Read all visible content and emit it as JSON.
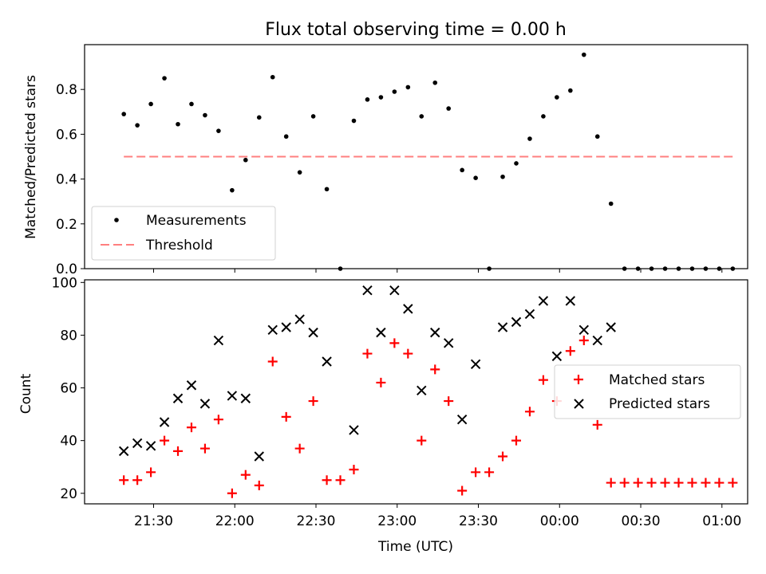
{
  "chart_data": [
    {
      "type": "scatter",
      "title": "Flux total observing time = 0.00 h",
      "ylabel": "Matched/Predicted stars",
      "ylim": [
        0,
        1.0
      ],
      "yticks": [
        0.0,
        0.2,
        0.4,
        0.6,
        0.8
      ],
      "ytick_labels": [
        "0.0",
        "0.2",
        "0.4",
        "0.6",
        "0.8"
      ],
      "legend": {
        "position": "lower-left",
        "entries": [
          "Measurements",
          "Threshold"
        ]
      },
      "series": [
        {
          "name": "Measurements",
          "marker": "dot",
          "color": "#000000",
          "x": [
            "21:19",
            "21:24",
            "21:29",
            "21:34",
            "21:39",
            "21:44",
            "21:49",
            "21:54",
            "21:59",
            "22:04",
            "22:09",
            "22:14",
            "22:19",
            "22:24",
            "22:29",
            "22:34",
            "22:39",
            "22:44",
            "22:49",
            "22:54",
            "22:59",
            "23:04",
            "23:09",
            "23:14",
            "23:19",
            "23:24",
            "23:29",
            "23:34",
            "23:39",
            "23:44",
            "23:49",
            "23:54",
            "23:59",
            "00:04",
            "00:09",
            "00:14",
            "00:19",
            "00:24",
            "00:29",
            "00:34",
            "00:39",
            "00:44",
            "00:49",
            "00:54",
            "00:59",
            "01:04"
          ],
          "y": [
            0.69,
            0.64,
            0.735,
            0.85,
            0.645,
            0.735,
            0.685,
            0.615,
            0.35,
            0.485,
            0.675,
            0.855,
            0.59,
            0.43,
            0.68,
            0.355,
            0.0,
            0.66,
            0.755,
            0.765,
            0.79,
            0.81,
            0.68,
            0.83,
            0.715,
            0.44,
            0.405,
            0.0,
            0.41,
            0.47,
            0.58,
            0.68,
            0.765,
            0.795,
            0.955,
            0.59,
            0.29,
            0.0,
            0.0,
            0.0,
            0.0,
            0.0,
            0.0,
            0.0,
            0.0,
            0.0
          ]
        },
        {
          "name": "Threshold",
          "style": "dashed",
          "color": "#ff7f7f",
          "x": [
            "21:19",
            "01:04"
          ],
          "y": [
            0.5,
            0.5
          ]
        }
      ]
    },
    {
      "type": "scatter",
      "xlabel": "Time (UTC)",
      "ylabel": "Count",
      "ylim": [
        16,
        101
      ],
      "yticks": [
        20,
        40,
        60,
        80,
        100
      ],
      "ytick_labels": [
        "20",
        "40",
        "60",
        "80",
        "100"
      ],
      "xticks": [
        "21:30",
        "22:00",
        "22:30",
        "23:00",
        "23:30",
        "00:00",
        "00:30",
        "01:00"
      ],
      "legend": {
        "position": "center-right",
        "entries": [
          "Matched stars",
          "Predicted stars"
        ]
      },
      "series": [
        {
          "name": "Matched stars",
          "marker": "plus",
          "color": "#ff0000",
          "x": [
            "21:19",
            "21:24",
            "21:29",
            "21:34",
            "21:39",
            "21:44",
            "21:49",
            "21:54",
            "21:59",
            "22:04",
            "22:09",
            "22:14",
            "22:19",
            "22:24",
            "22:29",
            "22:34",
            "22:39",
            "22:44",
            "22:49",
            "22:54",
            "22:59",
            "23:04",
            "23:09",
            "23:14",
            "23:19",
            "23:24",
            "23:29",
            "23:34",
            "23:39",
            "23:44",
            "23:49",
            "23:54",
            "23:59",
            "00:04",
            "00:09",
            "00:14",
            "00:19",
            "00:24",
            "00:29",
            "00:34",
            "00:39",
            "00:44",
            "00:49",
            "00:54",
            "00:59",
            "01:04"
          ],
          "y": [
            25,
            25,
            28,
            40,
            36,
            45,
            37,
            48,
            20,
            27,
            23,
            70,
            49,
            37,
            55,
            25,
            25,
            29,
            73,
            62,
            77,
            73,
            40,
            67,
            55,
            21,
            28,
            28,
            34,
            40,
            51,
            63,
            55,
            74,
            78,
            46,
            24,
            24,
            24,
            24,
            24,
            24,
            24,
            24,
            24,
            24
          ]
        },
        {
          "name": "Predicted stars",
          "marker": "x",
          "color": "#000000",
          "x": [
            "21:19",
            "21:24",
            "21:29",
            "21:34",
            "21:39",
            "21:44",
            "21:49",
            "21:54",
            "21:59",
            "22:04",
            "22:09",
            "22:14",
            "22:19",
            "22:24",
            "22:29",
            "22:34",
            "22:44",
            "22:49",
            "22:54",
            "22:59",
            "23:04",
            "23:09",
            "23:14",
            "23:19",
            "23:24",
            "23:29",
            "23:39",
            "23:44",
            "23:49",
            "23:54",
            "23:59",
            "00:04",
            "00:09",
            "00:14",
            "00:19"
          ],
          "y": [
            36,
            39,
            38,
            47,
            56,
            61,
            54,
            78,
            57,
            56,
            34,
            82,
            83,
            86,
            81,
            70,
            44,
            97,
            81,
            97,
            90,
            59,
            81,
            77,
            48,
            69,
            83,
            85,
            88,
            93,
            72,
            93,
            82,
            78,
            83
          ]
        }
      ]
    }
  ]
}
